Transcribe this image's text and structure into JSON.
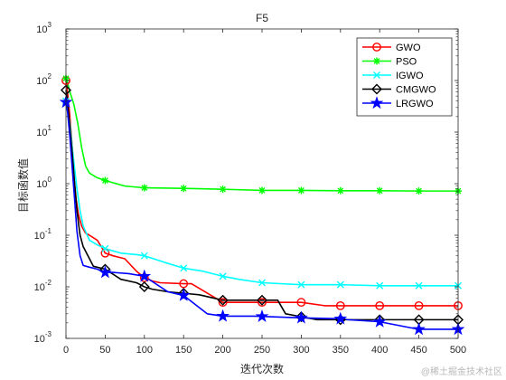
{
  "chart_data": {
    "type": "line",
    "title": "F5",
    "xlabel": "迭代次数",
    "ylabel": "目标函数值",
    "xlim": [
      0,
      500
    ],
    "ylim": [
      0.001,
      1000
    ],
    "yscale": "log",
    "grid": false,
    "legend_position": "top-right",
    "x_ticks": [
      "0",
      "50",
      "100",
      "150",
      "200",
      "250",
      "300",
      "350",
      "400",
      "450",
      "500"
    ],
    "y_ticks": [
      {
        "base": "10",
        "exp": "-3"
      },
      {
        "base": "10",
        "exp": "-2"
      },
      {
        "base": "10",
        "exp": "-1"
      },
      {
        "base": "10",
        "exp": "0"
      },
      {
        "base": "10",
        "exp": "1"
      },
      {
        "base": "10",
        "exp": "2"
      },
      {
        "base": "10",
        "exp": "3"
      }
    ],
    "series": [
      {
        "name": "GWO",
        "color": "#ff0000",
        "marker": "circle",
        "x": [
          0,
          2,
          5,
          8,
          10,
          13,
          16,
          20,
          25,
          30,
          40,
          50,
          60,
          75,
          90,
          100,
          110,
          120,
          150,
          160,
          200,
          250,
          300,
          330,
          350,
          400,
          450,
          500
        ],
        "y": [
          100,
          60,
          20,
          5,
          1.5,
          0.5,
          0.25,
          0.15,
          0.11,
          0.1,
          0.08,
          0.045,
          0.04,
          0.035,
          0.02,
          0.015,
          0.013,
          0.012,
          0.0115,
          0.0115,
          0.005,
          0.005,
          0.005,
          0.0043,
          0.0043,
          0.0043,
          0.0043,
          0.0043
        ],
        "marker_x": [
          0,
          50,
          100,
          150,
          200,
          250,
          300,
          350,
          400,
          450,
          500
        ]
      },
      {
        "name": "PSO",
        "color": "#00ff00",
        "marker": "asterisk",
        "x": [
          0,
          2,
          5,
          10,
          15,
          20,
          25,
          30,
          40,
          50,
          75,
          100,
          150,
          200,
          250,
          300,
          350,
          400,
          450,
          500
        ],
        "y": [
          110,
          90,
          60,
          35,
          15,
          5,
          2.2,
          1.6,
          1.3,
          1.15,
          0.9,
          0.83,
          0.81,
          0.78,
          0.74,
          0.74,
          0.73,
          0.73,
          0.72,
          0.72
        ],
        "marker_x": [
          0,
          50,
          100,
          150,
          200,
          250,
          300,
          350,
          400,
          450,
          500
        ]
      },
      {
        "name": "IGWO",
        "color": "#00ffff",
        "marker": "x",
        "x": [
          0,
          2,
          5,
          8,
          11,
          14,
          18,
          22,
          30,
          40,
          50,
          70,
          90,
          100,
          125,
          150,
          175,
          200,
          210,
          220,
          250,
          300,
          350,
          400,
          450,
          500
        ],
        "y": [
          40,
          30,
          15,
          5,
          2,
          0.8,
          0.3,
          0.15,
          0.08,
          0.065,
          0.055,
          0.045,
          0.042,
          0.04,
          0.03,
          0.023,
          0.02,
          0.016,
          0.015,
          0.014,
          0.012,
          0.011,
          0.011,
          0.0105,
          0.0105,
          0.0105
        ],
        "marker_x": [
          0,
          50,
          100,
          150,
          200,
          250,
          300,
          350,
          400,
          450,
          500
        ]
      },
      {
        "name": "CMGWO",
        "color": "#000000",
        "marker": "diamond",
        "x": [
          0,
          2,
          5,
          8,
          11,
          14,
          18,
          22,
          28,
          35,
          50,
          70,
          90,
          100,
          110,
          130,
          150,
          170,
          200,
          250,
          270,
          280,
          320,
          350,
          400,
          450,
          500
        ],
        "y": [
          65,
          40,
          12,
          4,
          1,
          0.3,
          0.1,
          0.06,
          0.04,
          0.025,
          0.022,
          0.014,
          0.012,
          0.01,
          0.009,
          0.008,
          0.0075,
          0.007,
          0.0055,
          0.0055,
          0.0055,
          0.003,
          0.0023,
          0.0023,
          0.0023,
          0.0023,
          0.0023
        ],
        "marker_x": [
          0,
          50,
          100,
          150,
          200,
          250,
          300,
          350,
          400,
          450,
          500
        ]
      },
      {
        "name": "LRGWO",
        "color": "#0000ff",
        "marker": "pentagram",
        "x": [
          0,
          2,
          5,
          8,
          11,
          14,
          18,
          22,
          30,
          40,
          50,
          60,
          80,
          100,
          130,
          150,
          180,
          200,
          240,
          300,
          350,
          360,
          400,
          440,
          450,
          500
        ],
        "y": [
          38,
          25,
          8,
          2,
          0.5,
          0.12,
          0.04,
          0.026,
          0.024,
          0.022,
          0.019,
          0.019,
          0.018,
          0.016,
          0.008,
          0.0068,
          0.003,
          0.0027,
          0.0027,
          0.0025,
          0.0024,
          0.0023,
          0.0021,
          0.0016,
          0.0015,
          0.0015
        ],
        "marker_x": [
          0,
          50,
          100,
          150,
          200,
          250,
          300,
          350,
          400,
          450,
          500
        ]
      }
    ]
  },
  "watermark": "@稀土掘金技术社区"
}
